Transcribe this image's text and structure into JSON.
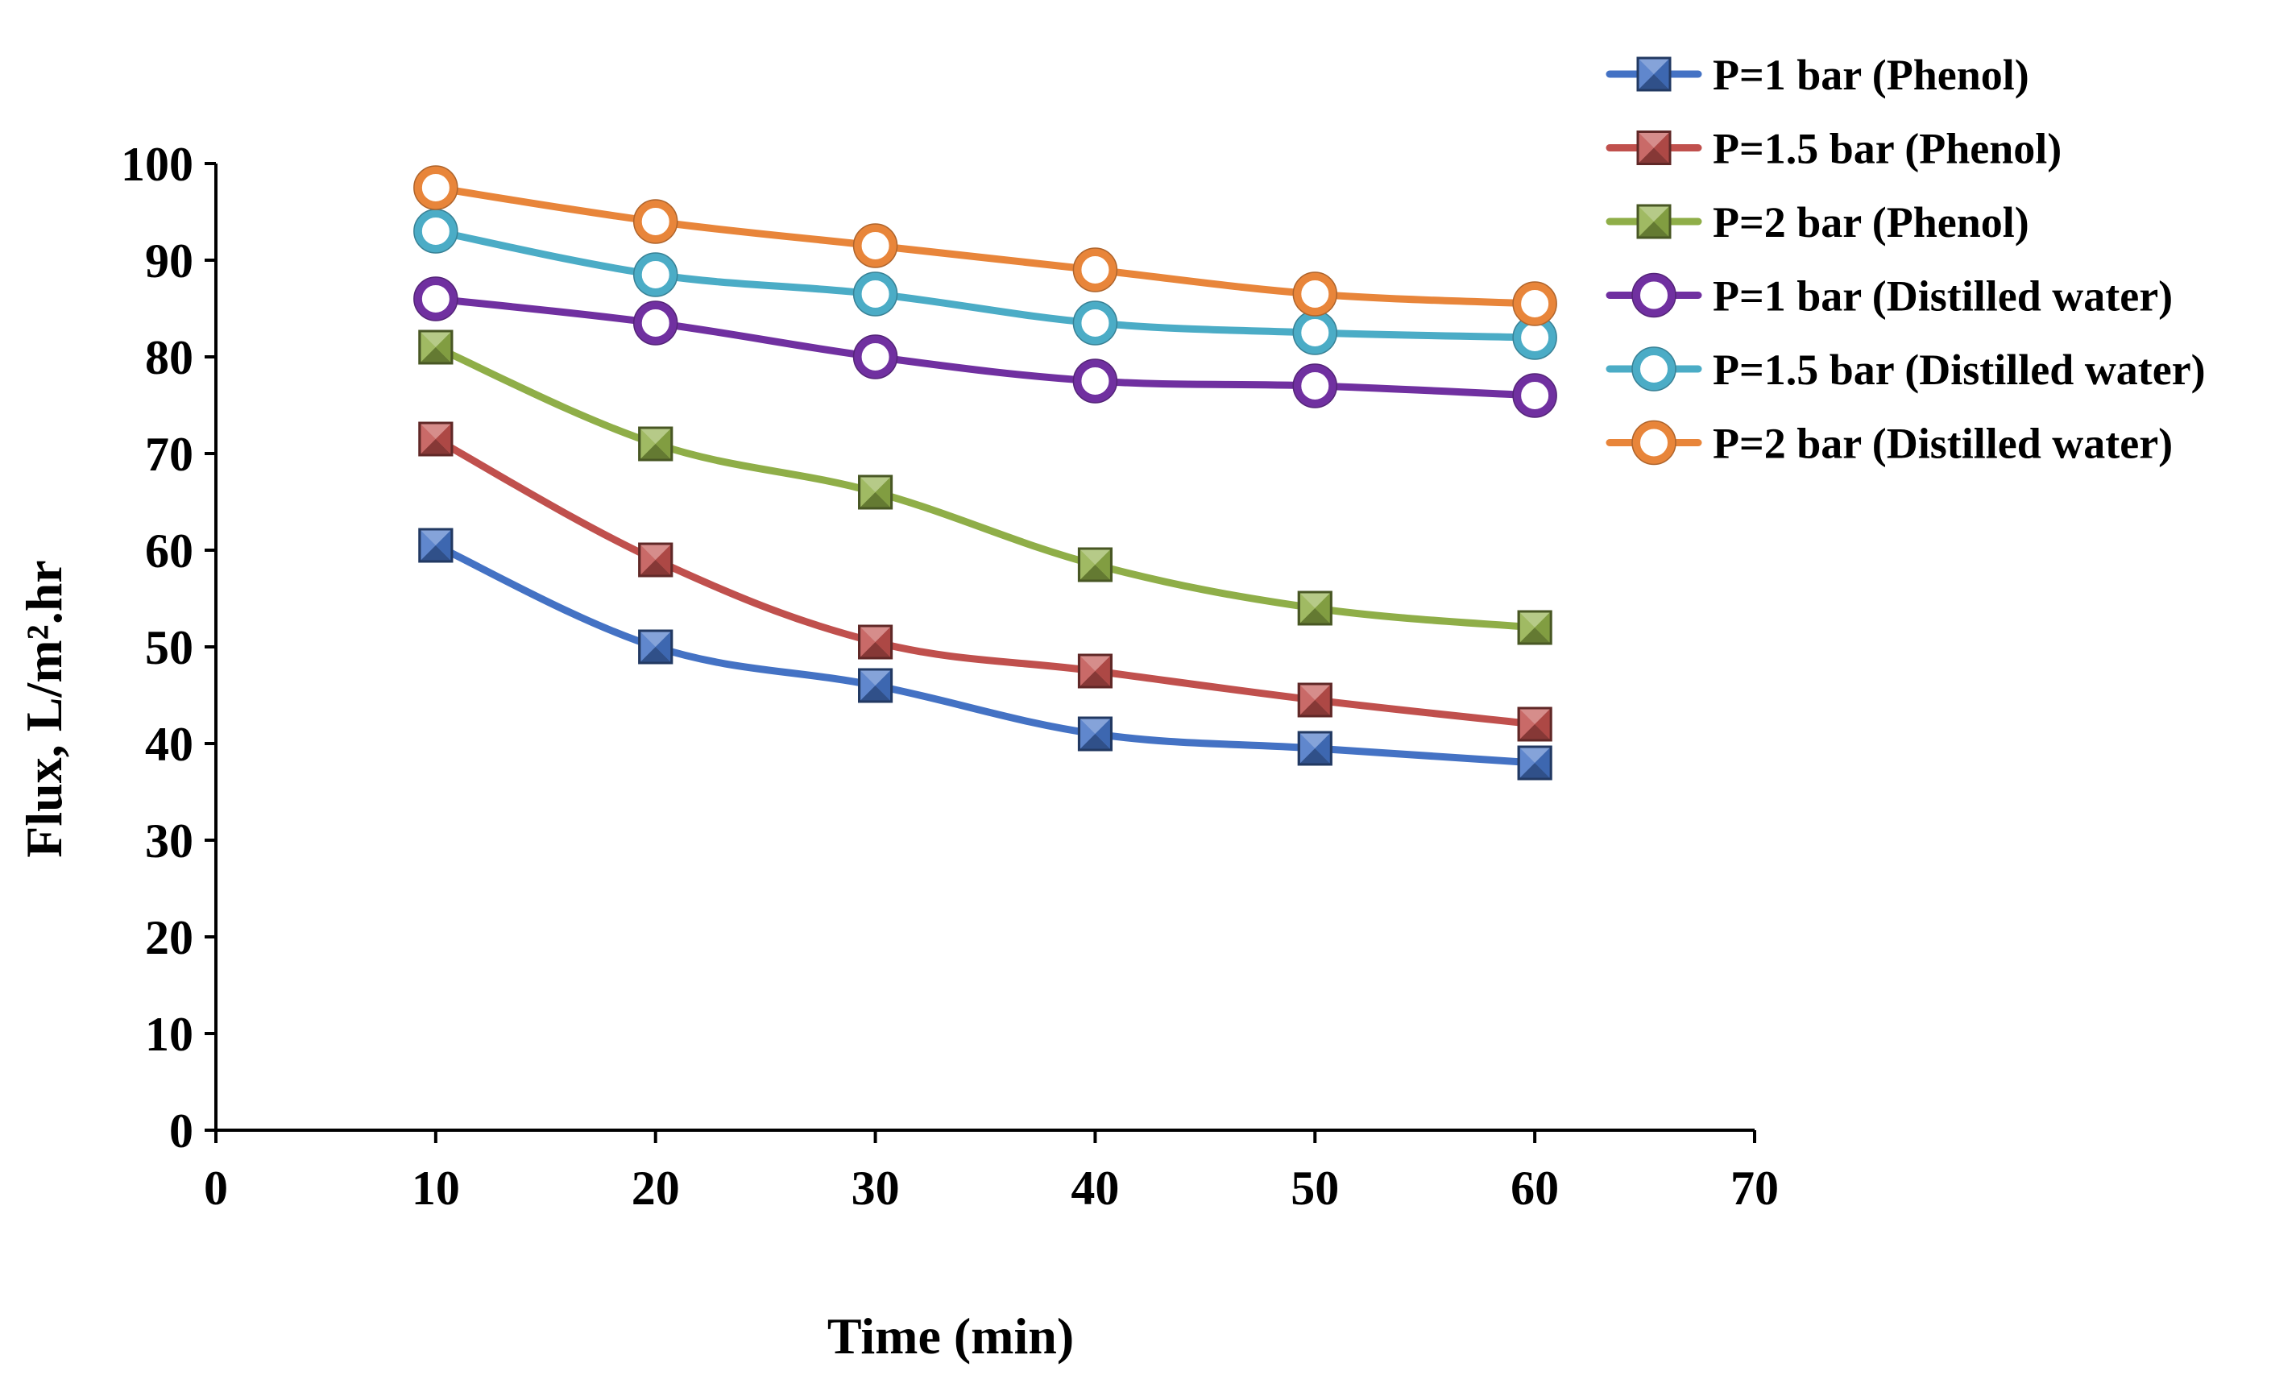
{
  "chart_data": {
    "type": "line",
    "title": "",
    "xlabel": "Time  (min)",
    "ylabel": "Flux,  L/m².hr",
    "xlim": [
      0,
      70
    ],
    "ylim": [
      0,
      100
    ],
    "xticks": [
      0,
      10,
      20,
      30,
      40,
      50,
      60,
      70
    ],
    "yticks": [
      0,
      10,
      20,
      30,
      40,
      50,
      60,
      70,
      80,
      90,
      100
    ],
    "xtick_labels": [
      "0",
      "10",
      "20",
      "30",
      "40",
      "50",
      "60",
      "70"
    ],
    "ytick_labels": [
      "0",
      "10",
      "20",
      "30",
      "40",
      "50",
      "60",
      "70",
      "80",
      "90",
      "100"
    ],
    "grid": false,
    "legend_position": "top-right",
    "x": [
      10,
      20,
      30,
      40,
      50,
      60
    ],
    "series": [
      {
        "name": "P=1 bar (Phenol)",
        "marker": "square",
        "color": "#4472C4",
        "values": [
          60.5,
          50,
          46,
          41,
          39.5,
          38
        ]
      },
      {
        "name": "P=1.5 bar (Phenol)",
        "marker": "square",
        "color": "#C0504D",
        "values": [
          71.5,
          59,
          50.5,
          47.5,
          44.5,
          42
        ]
      },
      {
        "name": "P=2 bar (Phenol)",
        "marker": "square",
        "color": "#8FAE48",
        "values": [
          81,
          71,
          66,
          58.5,
          54,
          52
        ]
      },
      {
        "name": "P=1 bar (Distilled water)",
        "marker": "circle",
        "color": "#7030A0",
        "values": [
          86,
          83.5,
          80,
          77.5,
          77,
          76
        ]
      },
      {
        "name": "P=1.5 bar (Distilled water)",
        "marker": "circle",
        "color": "#4BACC6",
        "values": [
          93,
          88.5,
          86.5,
          83.5,
          82.5,
          82
        ]
      },
      {
        "name": "P=2 bar (Distilled water)",
        "marker": "circle",
        "color": "#E8853A",
        "values": [
          97.5,
          94,
          91.5,
          89,
          86.5,
          85.5
        ]
      }
    ]
  }
}
